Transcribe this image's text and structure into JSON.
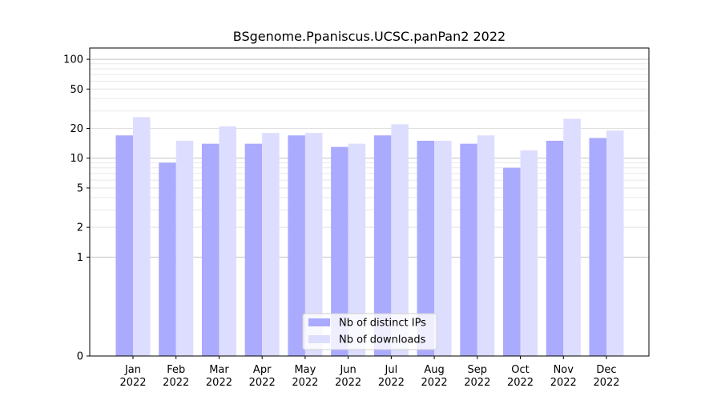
{
  "chart_data": {
    "type": "bar",
    "title": "BSgenome.Ppaniscus.UCSC.panPan2 2022",
    "xlabel": "",
    "ylabel": "",
    "yscale": "symlog",
    "yticks": [
      0,
      1,
      2,
      5,
      10,
      20,
      50,
      100
    ],
    "ylim": [
      0,
      130
    ],
    "grid": true,
    "legend_position": "bottom-center",
    "categories": [
      "Jan\n2022",
      "Feb\n2022",
      "Mar\n2022",
      "Apr\n2022",
      "May\n2022",
      "Jun\n2022",
      "Jul\n2022",
      "Aug\n2022",
      "Sep\n2022",
      "Oct\n2022",
      "Nov\n2022",
      "Dec\n2022"
    ],
    "series": [
      {
        "name": "Nb of distinct IPs",
        "color": "#aaaaff",
        "values": [
          17,
          9,
          14,
          14,
          17,
          13,
          17,
          15,
          14,
          8,
          15,
          16
        ]
      },
      {
        "name": "Nb of downloads",
        "color": "#ddddff",
        "values": [
          26,
          15,
          21,
          18,
          18,
          14,
          22,
          15,
          17,
          12,
          25,
          19
        ]
      }
    ]
  }
}
